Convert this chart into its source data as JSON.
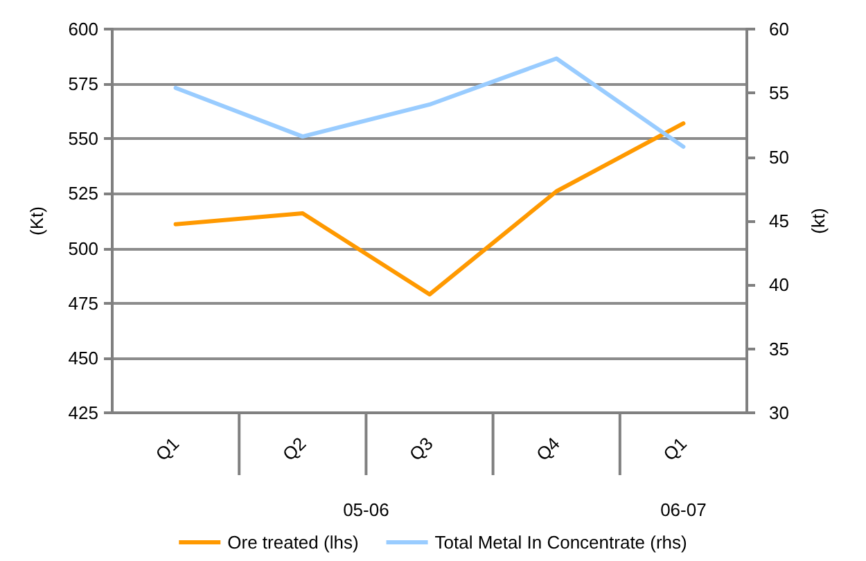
{
  "chart_data": {
    "type": "line",
    "categories": [
      "Q1",
      "Q2",
      "Q3",
      "Q4",
      "Q1"
    ],
    "series": [
      {
        "name": "Ore treated (lhs)",
        "color": "#ff9900",
        "values": [
          511,
          516,
          479,
          526,
          557
        ]
      },
      {
        "name": "Total Metal In Concentrate (rhs)",
        "color": "#99ccff",
        "axis": "y2",
        "values": [
          55.4,
          51.6,
          54.1,
          57.7,
          50.8
        ]
      }
    ],
    "ylabel": "(Kt)",
    "y2label": "(kt)",
    "ylim": [
      425,
      600
    ],
    "yticks": [
      425,
      450,
      475,
      500,
      525,
      550,
      575,
      600
    ],
    "y2lim": [
      30,
      60
    ],
    "y2ticks": [
      30,
      35,
      40,
      45,
      50,
      55,
      60
    ],
    "annotations": [
      "05-06",
      "06-07"
    ],
    "grid": "y",
    "legend": "bottom",
    "marker": "none",
    "line_style": "solid"
  }
}
